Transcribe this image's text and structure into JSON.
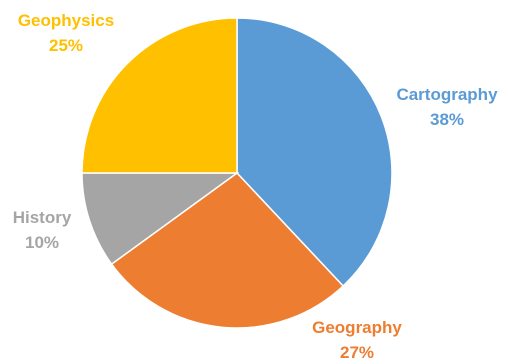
{
  "chart_data": {
    "type": "pie",
    "slices": [
      {
        "name": "Cartography",
        "value": 38,
        "label": "38%",
        "color": "#5b9bd5"
      },
      {
        "name": "Geography",
        "value": 27,
        "label": "27%",
        "color": "#ed7d31"
      },
      {
        "name": "History",
        "value": 10,
        "label": "10%",
        "color": "#a5a5a5"
      },
      {
        "name": "Geophysics",
        "value": 25,
        "label": "25%",
        "color": "#ffc000"
      }
    ],
    "start_angle": "12 o'clock",
    "direction": "clockwise",
    "legend": "none"
  }
}
